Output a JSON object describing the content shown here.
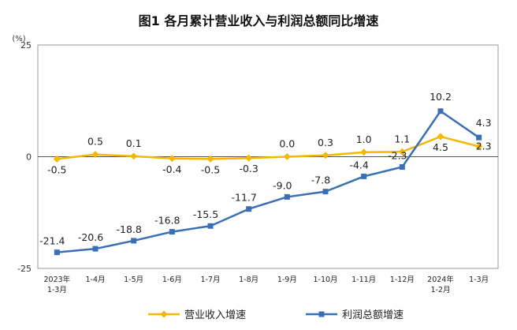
{
  "chart_data": {
    "type": "line",
    "title": "图1  各月累计营业收入与利润总额同比增速",
    "unit_label": "(%)",
    "ylim": [
      -25,
      25
    ],
    "yticks": [
      "25",
      "0",
      "-25"
    ],
    "categories": [
      [
        "2023年",
        "1-3月"
      ],
      [
        "1-4月"
      ],
      [
        "1-5月"
      ],
      [
        "1-6月"
      ],
      [
        "1-7月"
      ],
      [
        "1-8月"
      ],
      [
        "1-9月"
      ],
      [
        "1-10月"
      ],
      [
        "1-11月"
      ],
      [
        "1-12月"
      ],
      [
        "2024年",
        "1-2月"
      ],
      [
        "1-3月"
      ]
    ],
    "series": [
      {
        "name": "营业收入增速",
        "color": "#F5B800",
        "values": [
          -0.5,
          0.5,
          0.1,
          -0.4,
          -0.5,
          -0.3,
          0.0,
          0.3,
          1.0,
          1.1,
          4.5,
          2.3
        ],
        "labels": [
          "-0.5",
          "0.5",
          "0.1",
          "-0.4",
          "-0.5",
          "-0.3",
          "0.0",
          "0.3",
          "1.0",
          "1.1",
          "4.5",
          "2.3"
        ]
      },
      {
        "name": "利润总额增速",
        "color": "#3A6FB5",
        "values": [
          -21.4,
          -20.6,
          -18.8,
          -16.8,
          -15.5,
          -11.7,
          -9.0,
          -7.8,
          -4.4,
          -2.3,
          10.2,
          4.3
        ],
        "labels": [
          "-21.4",
          "-20.6",
          "-18.8",
          "-16.8",
          "-15.5",
          "-11.7",
          "-9.0",
          "-7.8",
          "-4.4",
          "-2.3",
          "10.2",
          "4.3"
        ]
      }
    ],
    "legend_position": "bottom",
    "grid": false
  }
}
